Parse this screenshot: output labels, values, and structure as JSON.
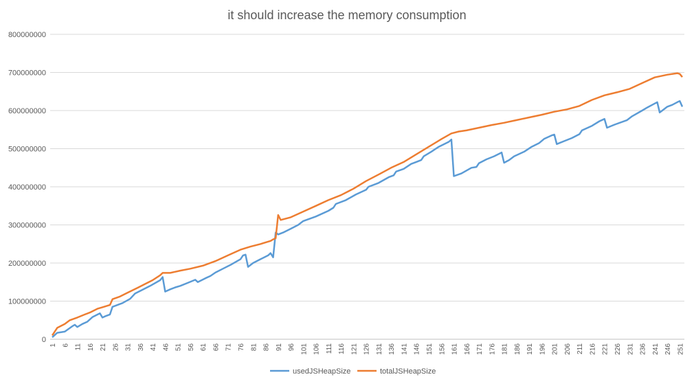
{
  "chart_data": {
    "type": "line",
    "title": "it should increase the memory consumption",
    "xlabel": "",
    "ylabel": "",
    "x_range": [
      1,
      252
    ],
    "x_tick_labels": [
      "1",
      "6",
      "11",
      "16",
      "21",
      "26",
      "31",
      "36",
      "41",
      "46",
      "51",
      "56",
      "61",
      "66",
      "71",
      "76",
      "81",
      "86",
      "91",
      "96",
      "101",
      "106",
      "111",
      "116",
      "121",
      "126",
      "131",
      "136",
      "141",
      "146",
      "151",
      "156",
      "161",
      "166",
      "171",
      "176",
      "181",
      "186",
      "191",
      "196",
      "201",
      "206",
      "211",
      "216",
      "221",
      "226",
      "231",
      "236",
      "241",
      "246",
      "251"
    ],
    "y_ticks": [
      0,
      100000000,
      200000000,
      300000000,
      400000000,
      500000000,
      600000000,
      700000000,
      800000000
    ],
    "y_tick_labels": [
      "0",
      "100000000",
      "200000000",
      "300000000",
      "400000000",
      "500000000",
      "600000000",
      "700000000",
      "800000000"
    ],
    "ylim": [
      0,
      800000000
    ],
    "grid": "horizontal",
    "legend": "bottom",
    "series": [
      {
        "name": "usedJSHeapSize",
        "color": "#5B9BD5",
        "points": [
          [
            1,
            5000000
          ],
          [
            3,
            17000000
          ],
          [
            6,
            20000000
          ],
          [
            9,
            34000000
          ],
          [
            10,
            38000000
          ],
          [
            11,
            32000000
          ],
          [
            13,
            40000000
          ],
          [
            15,
            46000000
          ],
          [
            17,
            58000000
          ],
          [
            20,
            68000000
          ],
          [
            21,
            57000000
          ],
          [
            22,
            60000000
          ],
          [
            24,
            65000000
          ],
          [
            25,
            85000000
          ],
          [
            29,
            95000000
          ],
          [
            32,
            106000000
          ],
          [
            34,
            120000000
          ],
          [
            37,
            130000000
          ],
          [
            40,
            140000000
          ],
          [
            44,
            155000000
          ],
          [
            45,
            163000000
          ],
          [
            46,
            125000000
          ],
          [
            48,
            131000000
          ],
          [
            50,
            136000000
          ],
          [
            52,
            140000000
          ],
          [
            55,
            148000000
          ],
          [
            58,
            156000000
          ],
          [
            59,
            150000000
          ],
          [
            62,
            160000000
          ],
          [
            64,
            166000000
          ],
          [
            66,
            175000000
          ],
          [
            69,
            185000000
          ],
          [
            72,
            195000000
          ],
          [
            76,
            210000000
          ],
          [
            77,
            220000000
          ],
          [
            78,
            222000000
          ],
          [
            79,
            190000000
          ],
          [
            81,
            200000000
          ],
          [
            84,
            210000000
          ],
          [
            87,
            220000000
          ],
          [
            88,
            226000000
          ],
          [
            89,
            215000000
          ],
          [
            90,
            280000000
          ],
          [
            91,
            275000000
          ],
          [
            93,
            280000000
          ],
          [
            96,
            290000000
          ],
          [
            99,
            300000000
          ],
          [
            101,
            310000000
          ],
          [
            106,
            322000000
          ],
          [
            111,
            337000000
          ],
          [
            113,
            345000000
          ],
          [
            114,
            355000000
          ],
          [
            118,
            365000000
          ],
          [
            122,
            380000000
          ],
          [
            126,
            392000000
          ],
          [
            127,
            400000000
          ],
          [
            131,
            410000000
          ],
          [
            135,
            425000000
          ],
          [
            137,
            430000000
          ],
          [
            138,
            440000000
          ],
          [
            141,
            447000000
          ],
          [
            144,
            460000000
          ],
          [
            146,
            465000000
          ],
          [
            148,
            470000000
          ],
          [
            149,
            480000000
          ],
          [
            152,
            492000000
          ],
          [
            155,
            505000000
          ],
          [
            159,
            518000000
          ],
          [
            160,
            524000000
          ],
          [
            161,
            428000000
          ],
          [
            164,
            435000000
          ],
          [
            168,
            450000000
          ],
          [
            170,
            452000000
          ],
          [
            171,
            462000000
          ],
          [
            174,
            472000000
          ],
          [
            177,
            480000000
          ],
          [
            180,
            490000000
          ],
          [
            181,
            463000000
          ],
          [
            183,
            470000000
          ],
          [
            185,
            480000000
          ],
          [
            189,
            492000000
          ],
          [
            192,
            505000000
          ],
          [
            195,
            515000000
          ],
          [
            197,
            526000000
          ],
          [
            200,
            535000000
          ],
          [
            201,
            537000000
          ],
          [
            202,
            512000000
          ],
          [
            205,
            520000000
          ],
          [
            208,
            528000000
          ],
          [
            211,
            538000000
          ],
          [
            212,
            548000000
          ],
          [
            216,
            560000000
          ],
          [
            219,
            572000000
          ],
          [
            221,
            578000000
          ],
          [
            222,
            555000000
          ],
          [
            225,
            563000000
          ],
          [
            230,
            575000000
          ],
          [
            232,
            585000000
          ],
          [
            236,
            600000000
          ],
          [
            238,
            608000000
          ],
          [
            240,
            615000000
          ],
          [
            242,
            622000000
          ],
          [
            243,
            595000000
          ],
          [
            244,
            600000000
          ],
          [
            246,
            610000000
          ],
          [
            248,
            615000000
          ],
          [
            250,
            622000000
          ],
          [
            251,
            625000000
          ],
          [
            252,
            610000000
          ]
        ]
      },
      {
        "name": "totalJSHeapSize",
        "color": "#ED7D31",
        "points": [
          [
            1,
            10000000
          ],
          [
            3,
            30000000
          ],
          [
            6,
            40000000
          ],
          [
            8,
            50000000
          ],
          [
            11,
            57000000
          ],
          [
            14,
            65000000
          ],
          [
            16,
            70000000
          ],
          [
            19,
            80000000
          ],
          [
            21,
            84000000
          ],
          [
            24,
            90000000
          ],
          [
            25,
            105000000
          ],
          [
            28,
            112000000
          ],
          [
            31,
            122000000
          ],
          [
            35,
            135000000
          ],
          [
            38,
            145000000
          ],
          [
            41,
            155000000
          ],
          [
            44,
            168000000
          ],
          [
            45,
            174000000
          ],
          [
            48,
            174000000
          ],
          [
            52,
            180000000
          ],
          [
            56,
            185000000
          ],
          [
            61,
            193000000
          ],
          [
            66,
            205000000
          ],
          [
            71,
            220000000
          ],
          [
            76,
            235000000
          ],
          [
            80,
            243000000
          ],
          [
            84,
            250000000
          ],
          [
            88,
            258000000
          ],
          [
            89,
            262000000
          ],
          [
            90,
            265000000
          ],
          [
            91,
            326000000
          ],
          [
            92,
            313000000
          ],
          [
            96,
            320000000
          ],
          [
            101,
            335000000
          ],
          [
            106,
            350000000
          ],
          [
            111,
            365000000
          ],
          [
            116,
            378000000
          ],
          [
            121,
            395000000
          ],
          [
            126,
            415000000
          ],
          [
            131,
            432000000
          ],
          [
            136,
            450000000
          ],
          [
            141,
            465000000
          ],
          [
            146,
            485000000
          ],
          [
            151,
            505000000
          ],
          [
            156,
            525000000
          ],
          [
            160,
            540000000
          ],
          [
            163,
            545000000
          ],
          [
            166,
            548000000
          ],
          [
            171,
            555000000
          ],
          [
            176,
            562000000
          ],
          [
            181,
            568000000
          ],
          [
            186,
            575000000
          ],
          [
            191,
            582000000
          ],
          [
            196,
            589000000
          ],
          [
            201,
            597000000
          ],
          [
            206,
            603000000
          ],
          [
            211,
            612000000
          ],
          [
            216,
            628000000
          ],
          [
            221,
            640000000
          ],
          [
            226,
            648000000
          ],
          [
            231,
            657000000
          ],
          [
            236,
            672000000
          ],
          [
            241,
            687000000
          ],
          [
            246,
            694000000
          ],
          [
            250,
            698000000
          ],
          [
            251,
            696000000
          ],
          [
            252,
            688000000
          ]
        ]
      }
    ]
  }
}
